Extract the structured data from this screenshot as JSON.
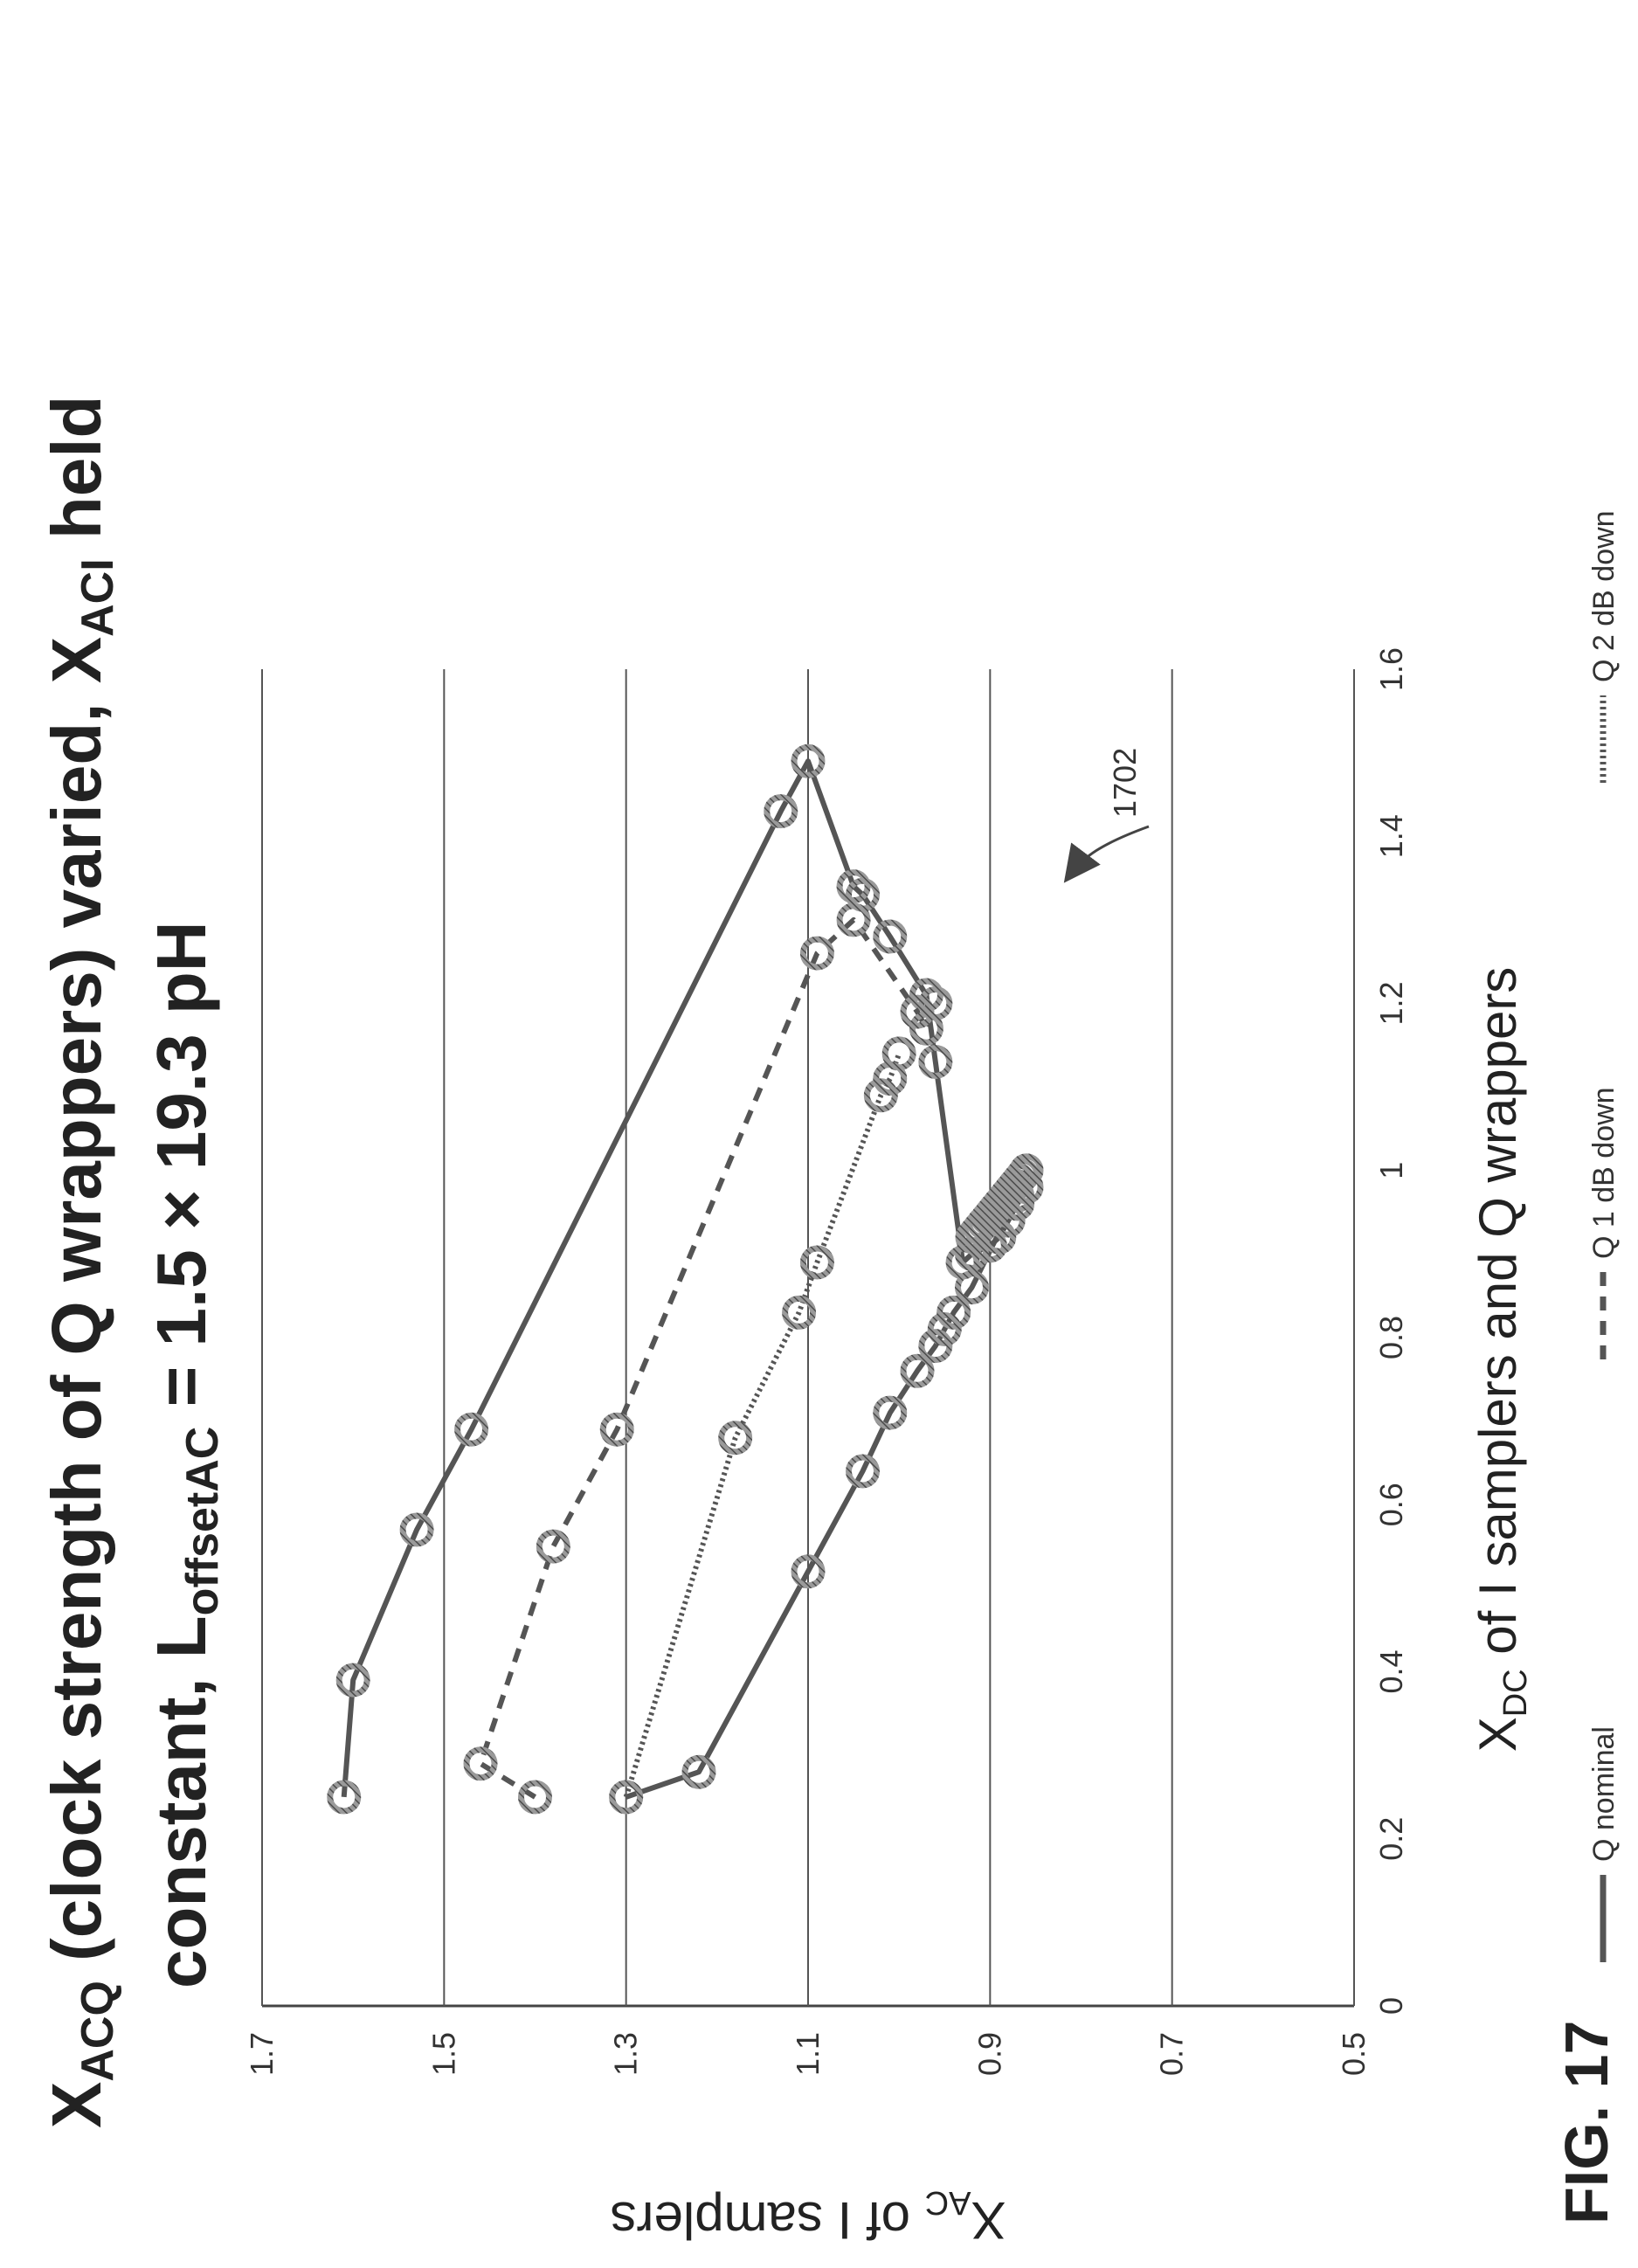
{
  "chart_data": {
    "type": "line",
    "title": {
      "line1": {
        "main": "X",
        "sub": "ACQ",
        "rest": " (clock strength of Q wrappers) varied, X",
        "sub2": "ACI",
        "rest2": " held"
      },
      "line2": {
        "main": "constant, L",
        "sub": "offsetAC",
        "rest": " = 1.5 × 19.3 pH"
      }
    },
    "xlabel": {
      "main": "X",
      "sub": "DC",
      "rest": " of I samplers and Q wrappers"
    },
    "ylabel": {
      "main": "X",
      "sub": "AC",
      "rest": " of I samplers"
    },
    "xlim": [
      0,
      1.6
    ],
    "ylim": [
      0.5,
      1.7
    ],
    "x_ticks": [
      "0",
      "0.2",
      "0.4",
      "0.6",
      "0.8",
      "1",
      "1.2",
      "1.4",
      "1.6"
    ],
    "y_ticks": [
      "0.5",
      "0.7",
      "0.9",
      "1.1",
      "1.3",
      "1.5",
      "1.7"
    ],
    "grid": "horizontal",
    "legend_position": "bottom",
    "annotation": {
      "label": "1702",
      "x": 1.0,
      "y": 0.87
    },
    "figure_label": "FIG. 17",
    "series": [
      {
        "name": "Q nominal",
        "style": "solid",
        "x": [
          0.25,
          0.28,
          0.52,
          0.64,
          0.71,
          0.76,
          0.79,
          0.81,
          0.83,
          0.86,
          0.97,
          1.0,
          0.98,
          0.96,
          0.94,
          0.92,
          0.91,
          0.9,
          0.89,
          1.13,
          1.21,
          1.28,
          1.33,
          1.34,
          1.49,
          1.43,
          0.69,
          0.57,
          0.39,
          0.25
        ],
        "y": [
          1.3,
          1.22,
          1.1,
          1.04,
          1.01,
          0.98,
          0.96,
          0.95,
          0.94,
          0.92,
          0.87,
          0.86,
          0.86,
          0.87,
          0.88,
          0.89,
          0.9,
          0.92,
          0.93,
          0.96,
          0.97,
          1.01,
          1.04,
          1.05,
          1.1,
          1.13,
          1.47,
          1.53,
          1.6,
          1.61
        ]
      },
      {
        "name": "Q 1 dB down",
        "style": "dashed",
        "x": [
          0.25,
          0.29,
          0.55,
          0.69,
          1.26,
          1.3,
          1.19,
          1.17,
          1.2
        ],
        "y": [
          1.4,
          1.46,
          1.38,
          1.31,
          1.09,
          1.05,
          0.98,
          0.97,
          0.96
        ]
      },
      {
        "name": "Q 2 dB down",
        "style": "dotted",
        "x": [
          0.25,
          0.68,
          0.83,
          0.89,
          1.09,
          1.11,
          1.14
        ],
        "y": [
          1.3,
          1.18,
          1.11,
          1.09,
          1.02,
          1.01,
          1.0
        ]
      }
    ]
  }
}
